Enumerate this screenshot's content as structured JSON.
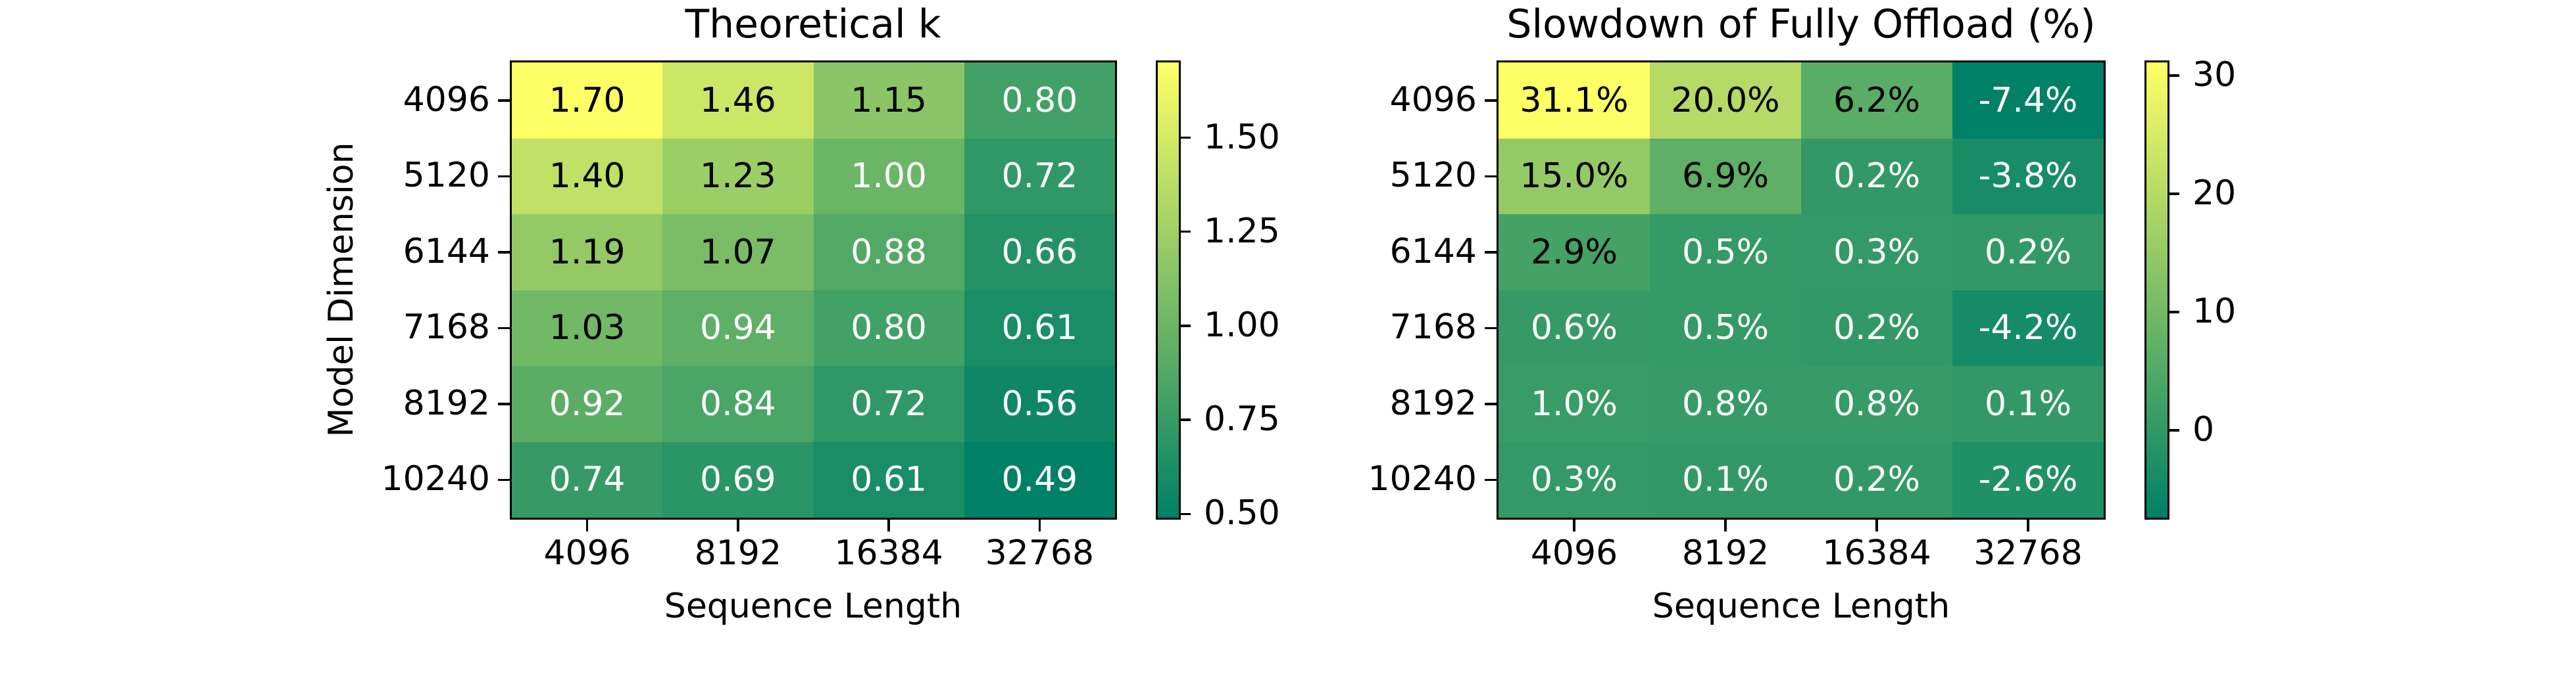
{
  "colors": {
    "background": "#ffffff",
    "spine": "#000000",
    "cmap_low": "#008066",
    "cmap_high": "#ffff66",
    "text_dark": "#000000",
    "text_light": "#ffffff"
  },
  "chart_data": [
    {
      "type": "heatmap",
      "title": "Theoretical k",
      "xlabel": "Sequence Length",
      "ylabel": "Model Dimension",
      "x_categories": [
        "4096",
        "8192",
        "16384",
        "32768"
      ],
      "y_categories": [
        "4096",
        "5120",
        "6144",
        "7168",
        "8192",
        "10240"
      ],
      "values": [
        [
          1.7,
          1.46,
          1.15,
          0.8
        ],
        [
          1.4,
          1.23,
          1.0,
          0.72
        ],
        [
          1.19,
          1.07,
          0.88,
          0.66
        ],
        [
          1.03,
          0.94,
          0.8,
          0.61
        ],
        [
          0.92,
          0.84,
          0.72,
          0.56
        ],
        [
          0.74,
          0.69,
          0.61,
          0.49
        ]
      ],
      "labels": [
        [
          "1.70",
          "1.46",
          "1.15",
          "0.80"
        ],
        [
          "1.40",
          "1.23",
          "1.00",
          "0.72"
        ],
        [
          "1.19",
          "1.07",
          "0.88",
          "0.66"
        ],
        [
          "1.03",
          "0.94",
          "0.80",
          "0.61"
        ],
        [
          "0.92",
          "0.84",
          "0.72",
          "0.56"
        ],
        [
          "0.74",
          "0.69",
          "0.61",
          "0.49"
        ]
      ],
      "text_colors": [
        [
          "dark",
          "dark",
          "dark",
          "light"
        ],
        [
          "dark",
          "dark",
          "light",
          "light"
        ],
        [
          "dark",
          "dark",
          "light",
          "light"
        ],
        [
          "dark",
          "light",
          "light",
          "light"
        ],
        [
          "light",
          "light",
          "light",
          "light"
        ],
        [
          "light",
          "light",
          "light",
          "light"
        ]
      ],
      "vmin": 0.49,
      "vmax": 1.7,
      "colormap": "summer",
      "grid": false,
      "legend": false,
      "colorbar_position": "right",
      "colorbar_ticks": [
        {
          "value": 0.5,
          "label": "0.50"
        },
        {
          "value": 0.75,
          "label": "0.75"
        },
        {
          "value": 1.0,
          "label": "1.00"
        },
        {
          "value": 1.25,
          "label": "1.25"
        },
        {
          "value": 1.5,
          "label": "1.50"
        }
      ]
    },
    {
      "type": "heatmap",
      "title": "Slowdown of Fully Offload (%)",
      "xlabel": "Sequence Length",
      "ylabel": "",
      "x_categories": [
        "4096",
        "8192",
        "16384",
        "32768"
      ],
      "y_categories": [
        "4096",
        "5120",
        "6144",
        "7168",
        "8192",
        "10240"
      ],
      "values": [
        [
          31.1,
          20.0,
          6.2,
          -7.4
        ],
        [
          15.0,
          6.9,
          0.2,
          -3.8
        ],
        [
          2.9,
          0.5,
          0.3,
          0.2
        ],
        [
          0.6,
          0.5,
          0.2,
          -4.2
        ],
        [
          1.0,
          0.8,
          0.8,
          0.1
        ],
        [
          0.3,
          0.1,
          0.2,
          -2.6
        ]
      ],
      "labels": [
        [
          "31.1%",
          "20.0%",
          "6.2%",
          "-7.4%"
        ],
        [
          "15.0%",
          "6.9%",
          "0.2%",
          "-3.8%"
        ],
        [
          "2.9%",
          "0.5%",
          "0.3%",
          "0.2%"
        ],
        [
          "0.6%",
          "0.5%",
          "0.2%",
          "-4.2%"
        ],
        [
          "1.0%",
          "0.8%",
          "0.8%",
          "0.1%"
        ],
        [
          "0.3%",
          "0.1%",
          "0.2%",
          "-2.6%"
        ]
      ],
      "text_colors": [
        [
          "dark",
          "dark",
          "dark",
          "light"
        ],
        [
          "dark",
          "dark",
          "light",
          "light"
        ],
        [
          "dark",
          "light",
          "light",
          "light"
        ],
        [
          "light",
          "light",
          "light",
          "light"
        ],
        [
          "light",
          "light",
          "light",
          "light"
        ],
        [
          "light",
          "light",
          "light",
          "light"
        ]
      ],
      "vmin": -7.4,
      "vmax": 31.1,
      "colormap": "summer",
      "grid": false,
      "legend": false,
      "colorbar_position": "right",
      "colorbar_ticks": [
        {
          "value": 0,
          "label": "0"
        },
        {
          "value": 10,
          "label": "10"
        },
        {
          "value": 20,
          "label": "20"
        },
        {
          "value": 30,
          "label": "30"
        }
      ]
    }
  ]
}
